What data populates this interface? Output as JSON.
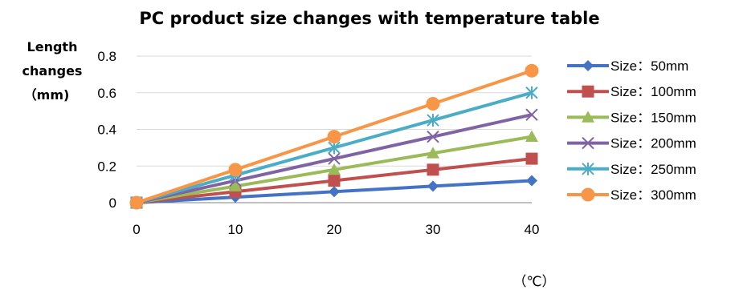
{
  "chart_data": {
    "type": "line",
    "title": "PC product size changes with temperature  table",
    "ylabel_lines": [
      "Length",
      "changes",
      "（mm)"
    ],
    "xlabel": "（℃）",
    "x": [
      0,
      10,
      20,
      30,
      40
    ],
    "x_ticks": [
      "0",
      "10",
      "20",
      "30",
      "40"
    ],
    "y_ticks": [
      "0",
      "0.2",
      "0.4",
      "0.6",
      "0.8"
    ],
    "ylim": [
      0,
      0.8
    ],
    "grid": "horizontal",
    "legend_position": "right",
    "series": [
      {
        "name": "Size：50mm",
        "values": [
          0,
          0.03,
          0.06,
          0.09,
          0.12
        ],
        "color": "#4472C4",
        "marker": "diamond"
      },
      {
        "name": "Size：100mm",
        "values": [
          0,
          0.06,
          0.12,
          0.18,
          0.24
        ],
        "color": "#C0504D",
        "marker": "square"
      },
      {
        "name": "Size：150mm",
        "values": [
          0,
          0.09,
          0.18,
          0.27,
          0.36
        ],
        "color": "#9BBB59",
        "marker": "triangle"
      },
      {
        "name": "Size：200mm",
        "values": [
          0,
          0.12,
          0.24,
          0.36,
          0.48
        ],
        "color": "#7F63A2",
        "marker": "x"
      },
      {
        "name": "Size：250mm",
        "values": [
          0,
          0.15,
          0.3,
          0.45,
          0.6
        ],
        "color": "#4BACC6",
        "marker": "star"
      },
      {
        "name": "Size：300mm",
        "values": [
          0,
          0.18,
          0.36,
          0.54,
          0.72
        ],
        "color": "#F79646",
        "marker": "circle"
      }
    ]
  }
}
